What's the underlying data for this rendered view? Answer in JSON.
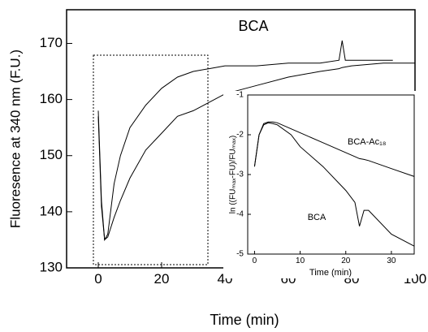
{
  "chart_data": [
    {
      "type": "line",
      "x_label": "Time (min)",
      "y_label": "Fluoresence at 340 nm (F.U.)",
      "xlim": [
        -10,
        100
      ],
      "ylim": [
        130,
        176
      ],
      "xticks": [
        0,
        20,
        40,
        60,
        80,
        100
      ],
      "yticks": [
        130,
        140,
        150,
        160,
        170
      ],
      "x": [
        0,
        1,
        2,
        3,
        5,
        7,
        10,
        15,
        20,
        25,
        30,
        35,
        40,
        50,
        60,
        70,
        76,
        77,
        78,
        80,
        90,
        93,
        100
      ],
      "series": [
        {
          "name": "BCA",
          "color": "#000000",
          "values": [
            158,
            142,
            135,
            136,
            145,
            150,
            155,
            159,
            162,
            164,
            165,
            165.5,
            166,
            166,
            166.5,
            166.5,
            167,
            170.5,
            167,
            167,
            167,
            167,
            null
          ]
        },
        {
          "name": "BCA-Ac₁₈",
          "color": "#000000",
          "values": [
            157,
            141,
            135,
            135.5,
            139,
            142,
            146,
            151,
            154,
            157,
            158,
            159.5,
            161,
            162.5,
            164,
            165,
            165.5,
            165.7,
            165.8,
            166,
            166.5,
            166.5,
            166.5
          ]
        }
      ],
      "annotations": [
        "BCA",
        "BCA-Ac₁₈"
      ]
    },
    {
      "type": "line",
      "x_label": "Time (min)",
      "y_label": "ln ((FUₘₐₓ-FU)/FUₘₐₓ)",
      "xlim": [
        -1.5,
        35
      ],
      "ylim": [
        -5,
        -1
      ],
      "xticks": [
        0,
        10,
        20,
        30
      ],
      "yticks": [
        -1,
        -2,
        -3,
        -4,
        -5
      ],
      "x": [
        0,
        1,
        2,
        3,
        4,
        5,
        8,
        10,
        15,
        20,
        22,
        23,
        24,
        25,
        30,
        35
      ],
      "series": [
        {
          "name": "BCA",
          "color": "#000000",
          "values": [
            -2.8,
            -2.0,
            -1.75,
            -1.7,
            -1.72,
            -1.75,
            -2.0,
            -2.3,
            -2.8,
            -3.4,
            -3.7,
            -4.3,
            -3.9,
            -3.9,
            -4.5,
            -4.8
          ]
        },
        {
          "name": "BCA-Ac₁₈",
          "color": "#000000",
          "values": [
            -2.8,
            -2.0,
            -1.72,
            -1.68,
            -1.68,
            -1.7,
            -1.85,
            -1.95,
            -2.2,
            -2.45,
            -2.55,
            -2.6,
            -2.62,
            -2.65,
            -2.85,
            -3.05
          ]
        }
      ],
      "annotations": [
        "BCA",
        "BCA-Ac₁₈"
      ]
    }
  ]
}
